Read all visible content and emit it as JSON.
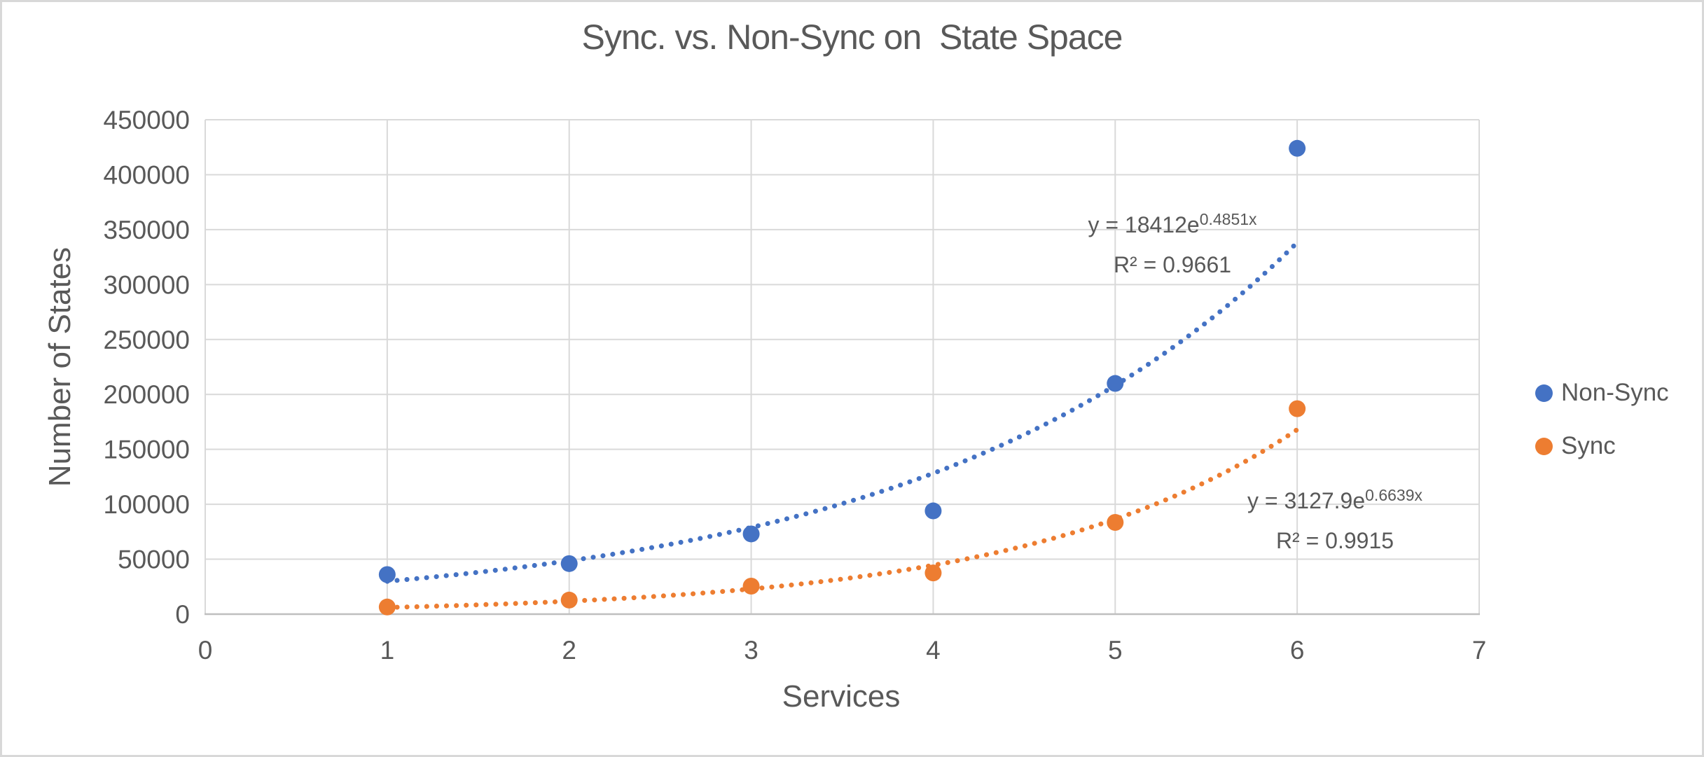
{
  "chart_data": {
    "type": "scatter",
    "title": "Sync. vs. Non-Sync on  State Space",
    "xlabel": "Services",
    "ylabel": "Number of States",
    "xlim": [
      0,
      7
    ],
    "ylim": [
      0,
      450000
    ],
    "x_ticks": [
      0,
      1,
      2,
      3,
      4,
      5,
      6,
      7
    ],
    "y_ticks": [
      0,
      50000,
      100000,
      150000,
      200000,
      250000,
      300000,
      350000,
      400000,
      450000
    ],
    "grid": true,
    "legend_position": "right",
    "text_color": "#595959",
    "grid_color": "#D9D9D9",
    "axis_color": "#BFBFBF",
    "series": [
      {
        "name": "Non-Sync",
        "color": "#4472C4",
        "x": [
          1,
          2,
          3,
          4,
          5,
          6
        ],
        "y": [
          36000,
          46000,
          73000,
          94000,
          210000,
          424000
        ],
        "trendline": {
          "type": "exponential",
          "a": 18412,
          "b": 0.4851,
          "range": [
            1,
            6
          ],
          "equation_base": "y = 18412e",
          "equation_exponent": "0.4851x",
          "r_squared": "R² = 0.9661"
        }
      },
      {
        "name": "Sync",
        "color": "#ED7D31",
        "x": [
          1,
          2,
          3,
          4,
          5,
          6
        ],
        "y": [
          6500,
          12800,
          25500,
          37500,
          83500,
          187000
        ],
        "trendline": {
          "type": "exponential",
          "a": 3127.9,
          "b": 0.6639,
          "range": [
            1,
            6
          ],
          "equation_base": "y = 3127.9e",
          "equation_exponent": "0.6639x",
          "r_squared": "R² = 0.9915"
        }
      }
    ]
  }
}
